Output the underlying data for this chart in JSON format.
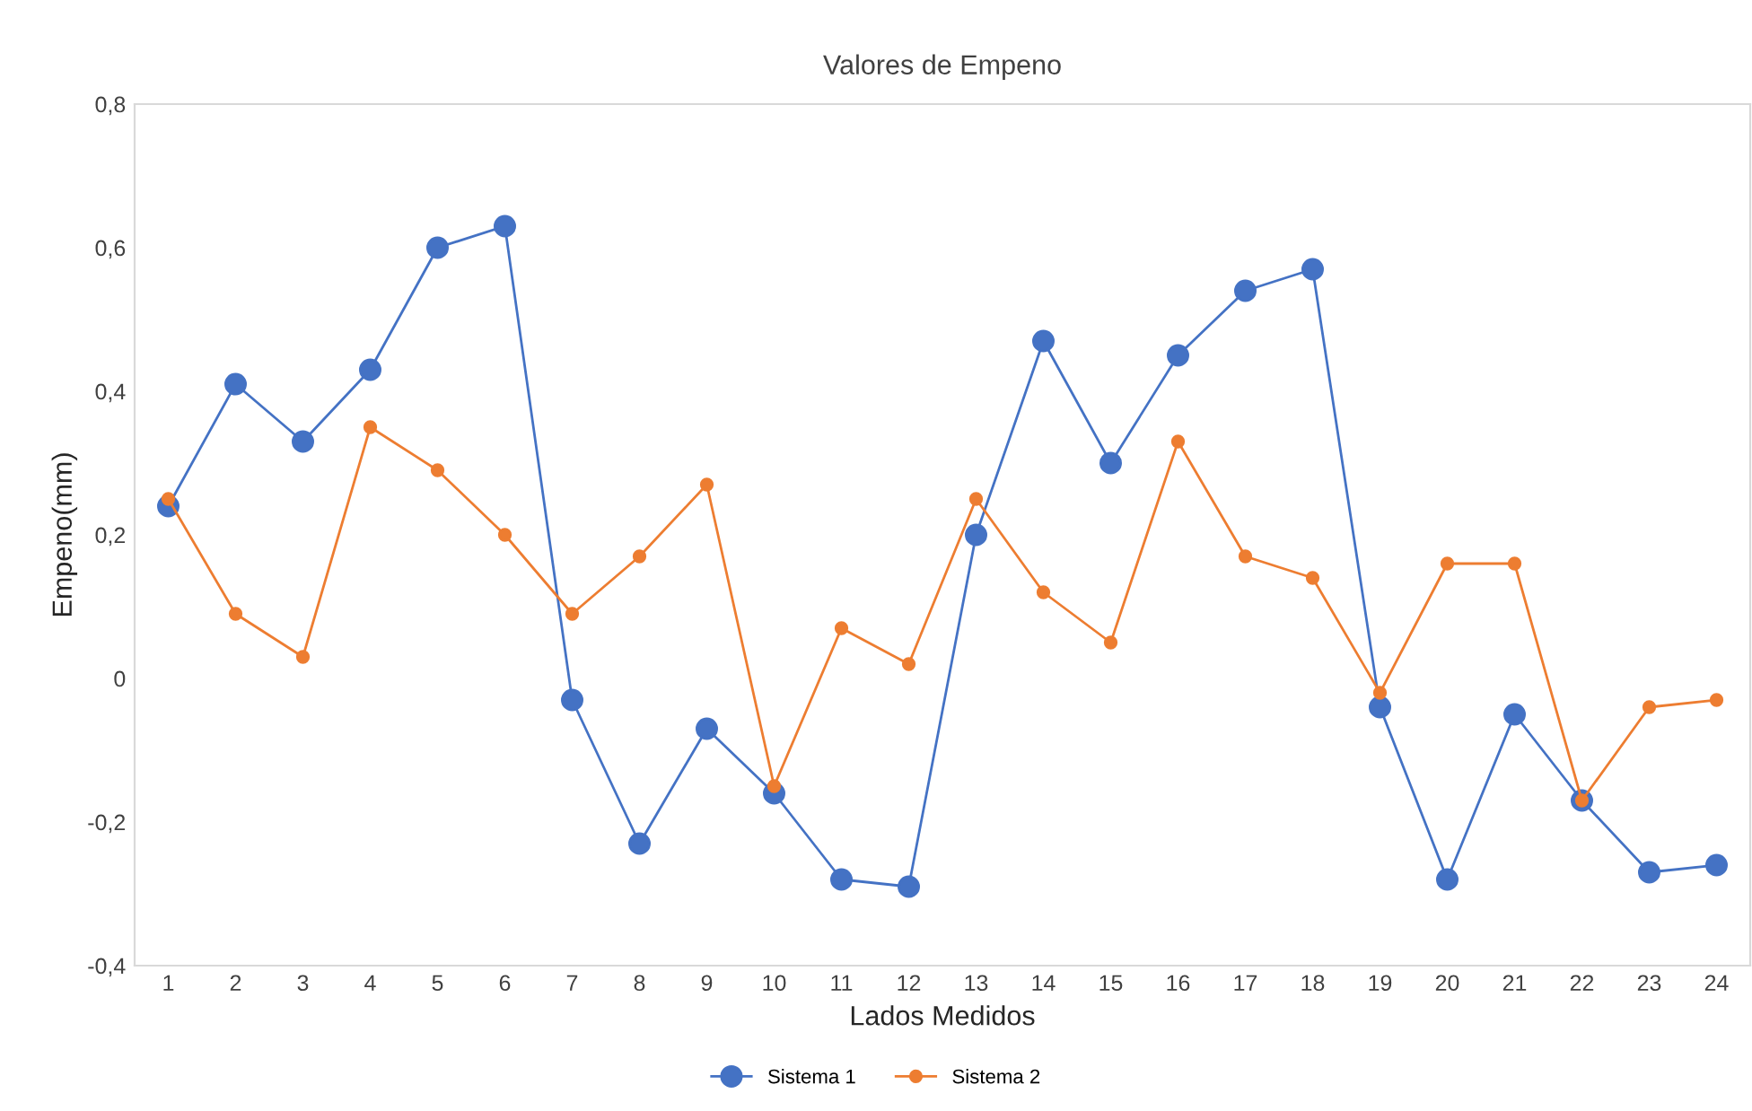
{
  "chart_data": {
    "type": "line",
    "title": "Valores de Empeno",
    "xlabel": "Lados Medidos",
    "ylabel": "Empeno(mm)",
    "categories": [
      "1",
      "2",
      "3",
      "4",
      "5",
      "6",
      "7",
      "8",
      "9",
      "10",
      "11",
      "12",
      "13",
      "14",
      "15",
      "16",
      "17",
      "18",
      "19",
      "20",
      "21",
      "22",
      "23",
      "24"
    ],
    "series": [
      {
        "name": "Sistema 1",
        "color": "#4472c4",
        "values": [
          0.24,
          0.41,
          0.33,
          0.43,
          0.6,
          0.63,
          -0.03,
          -0.23,
          -0.07,
          -0.16,
          -0.28,
          -0.29,
          0.2,
          0.47,
          0.3,
          0.45,
          0.54,
          0.57,
          -0.04,
          -0.28,
          -0.05,
          -0.17,
          -0.27,
          -0.26
        ]
      },
      {
        "name": "Sistema 2",
        "color": "#ed7d31",
        "values": [
          0.25,
          0.09,
          0.03,
          0.35,
          0.29,
          0.2,
          0.09,
          0.17,
          0.27,
          -0.15,
          0.07,
          0.02,
          0.25,
          0.12,
          0.05,
          0.33,
          0.17,
          0.14,
          -0.02,
          0.16,
          0.16,
          -0.17,
          -0.04,
          -0.03
        ]
      }
    ],
    "ylim": [
      -0.4,
      0.8
    ],
    "yticks": [
      {
        "value": -0.4,
        "label": "-0,4"
      },
      {
        "value": -0.2,
        "label": "-0,2"
      },
      {
        "value": 0,
        "label": "0"
      },
      {
        "value": 0.2,
        "label": "0,2"
      },
      {
        "value": 0.4,
        "label": "0,4"
      },
      {
        "value": 0.6,
        "label": "0,6"
      },
      {
        "value": 0.8,
        "label": "0,8"
      }
    ],
    "grid": false,
    "legend": "bottom",
    "marker": "circle",
    "line_style": "solid"
  }
}
